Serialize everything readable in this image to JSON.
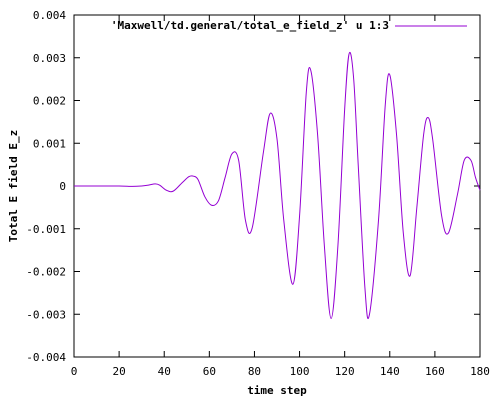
{
  "chart_data": {
    "type": "line",
    "title": "",
    "xlabel": "time step",
    "ylabel": "Total E field E_z",
    "xlim": [
      0,
      180
    ],
    "ylim": [
      -0.004,
      0.004
    ],
    "x_ticks": [
      0,
      20,
      40,
      60,
      80,
      100,
      120,
      140,
      160,
      180
    ],
    "x_tick_labels": [
      "0",
      "20",
      "40",
      "60",
      "80",
      "100",
      "120",
      "140",
      "160",
      "180"
    ],
    "y_ticks": [
      -0.004,
      -0.003,
      -0.002,
      -0.001,
      0,
      0.001,
      0.002,
      0.003,
      0.004
    ],
    "y_tick_labels": [
      "-0.004",
      "-0.003",
      "-0.002",
      "-0.001",
      "0",
      "0.001",
      "0.002",
      "0.003",
      "0.004"
    ],
    "grid": false,
    "legend_position": "top-right",
    "series": [
      {
        "name": "'Maxwell/td.general/total_e_field_z' u 1:3",
        "color": "#9400d3",
        "x": [
          0,
          10,
          20,
          26,
          30,
          33,
          36,
          38,
          41,
          44,
          48,
          51,
          53,
          55,
          58,
          61,
          64,
          67,
          70,
          73,
          76,
          79,
          84,
          87,
          90,
          93,
          97,
          100,
          103,
          105,
          108,
          111,
          114,
          117,
          120,
          122,
          124,
          126,
          129,
          131,
          135,
          138,
          140,
          143,
          146,
          149,
          152,
          155,
          157,
          159,
          163,
          166,
          170,
          173,
          176,
          178,
          180
        ],
        "y": [
          0.0,
          0.0,
          0.0,
          -1e-05,
          0.0,
          2e-05,
          5e-05,
          2e-05,
          -0.0001,
          -0.00012,
          8e-05,
          0.00022,
          0.00023,
          0.00015,
          -0.00025,
          -0.00045,
          -0.00035,
          0.0002,
          0.00075,
          0.0006,
          -0.0008,
          -0.00098,
          0.0008,
          0.0017,
          0.0011,
          -0.0008,
          -0.0023,
          -0.0007,
          0.0022,
          0.0027,
          0.0012,
          -0.0014,
          -0.0031,
          -0.0014,
          0.0018,
          0.0031,
          0.0025,
          0.0005,
          -0.0024,
          -0.003,
          -0.0008,
          0.0019,
          0.0026,
          0.0012,
          -0.0011,
          -0.0021,
          -0.0005,
          0.0012,
          0.0016,
          0.0011,
          -0.0007,
          -0.0011,
          -0.0002,
          0.0006,
          0.0006,
          0.0002,
          -0.0001
        ]
      }
    ]
  }
}
